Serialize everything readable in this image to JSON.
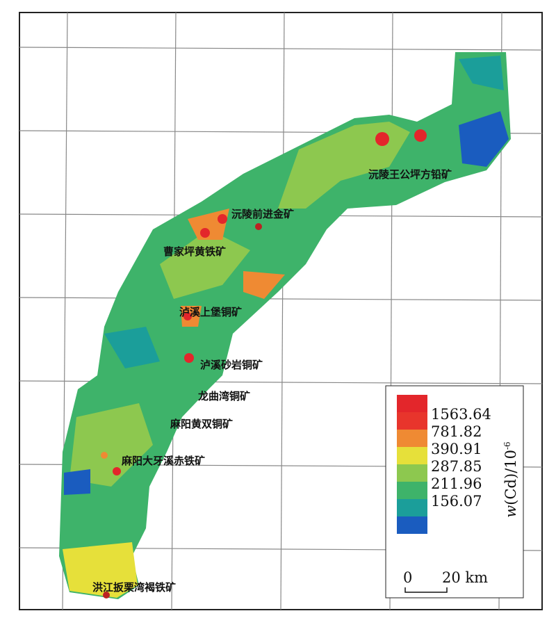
{
  "map": {
    "mines": [
      "沅陵王公坪方铅矿",
      "沅陵前进金矿",
      "曹家坪黄铁矿",
      "泸溪上堡铜矿",
      "泸溪砂岩铜矿",
      "龙曲湾铜矿",
      "麻阳黄双铜矿",
      "麻阳大牙溪赤铁矿",
      "洪江扳栗湾褐铁矿"
    ],
    "legend": {
      "title": {
        "italic": "w",
        "text": "(Cd)/10",
        "sup": "-6"
      },
      "labels": [
        "1563.64",
        "781.82",
        "390.91",
        "287.85",
        "211.96",
        "156.07"
      ],
      "colors": [
        "#e3262b",
        "#e8352c",
        "#ef8a33",
        "#e6e03a",
        "#8dc84f",
        "#3eb36a",
        "#1b9e9a",
        "#1a5cbf"
      ]
    },
    "scale": {
      "start": "0",
      "end": "20 km"
    }
  }
}
